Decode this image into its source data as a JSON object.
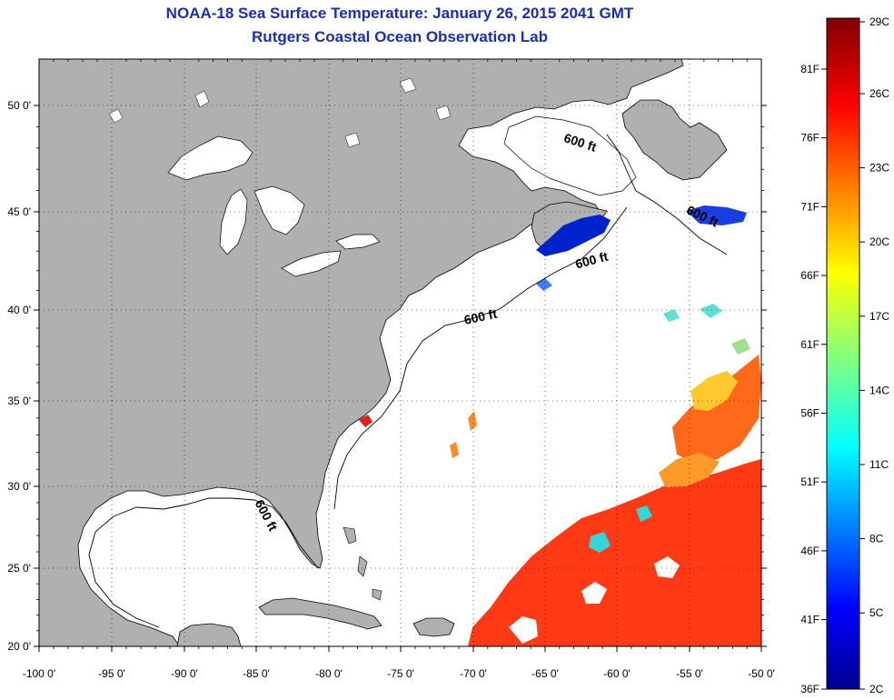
{
  "title": {
    "line1": "NOAA-18 Sea Surface Temperature:  January 26, 2015 2041 GMT",
    "line2": "Rutgers Coastal Ocean Observation Lab"
  },
  "map": {
    "lon_labels": [
      "-100 0'",
      "-95 0'",
      "-90 0'",
      "-85 0'",
      "-80 0'",
      "-75 0'",
      "-70 0'",
      "-65 0'",
      "-60 0'",
      "-55 0'",
      "-50 0'"
    ],
    "lat_labels": [
      "50 0'",
      "45 0'",
      "40 0'",
      "35 0'",
      "30 0'",
      "25 0'",
      "20 0'"
    ],
    "contour_label": "600 ft",
    "colors": {
      "land": "#b0b0b0",
      "ocean": "#ffffff",
      "coast": "#000000"
    }
  },
  "colorbar": {
    "celsius": [
      "29C",
      "26C",
      "23C",
      "20C",
      "17C",
      "14C",
      "11C",
      "8C",
      "5C",
      "2C"
    ],
    "fahrenheit": [
      "81F",
      "76F",
      "71F",
      "66F",
      "61F",
      "56F",
      "51F",
      "46F",
      "41F",
      "36F"
    ]
  }
}
